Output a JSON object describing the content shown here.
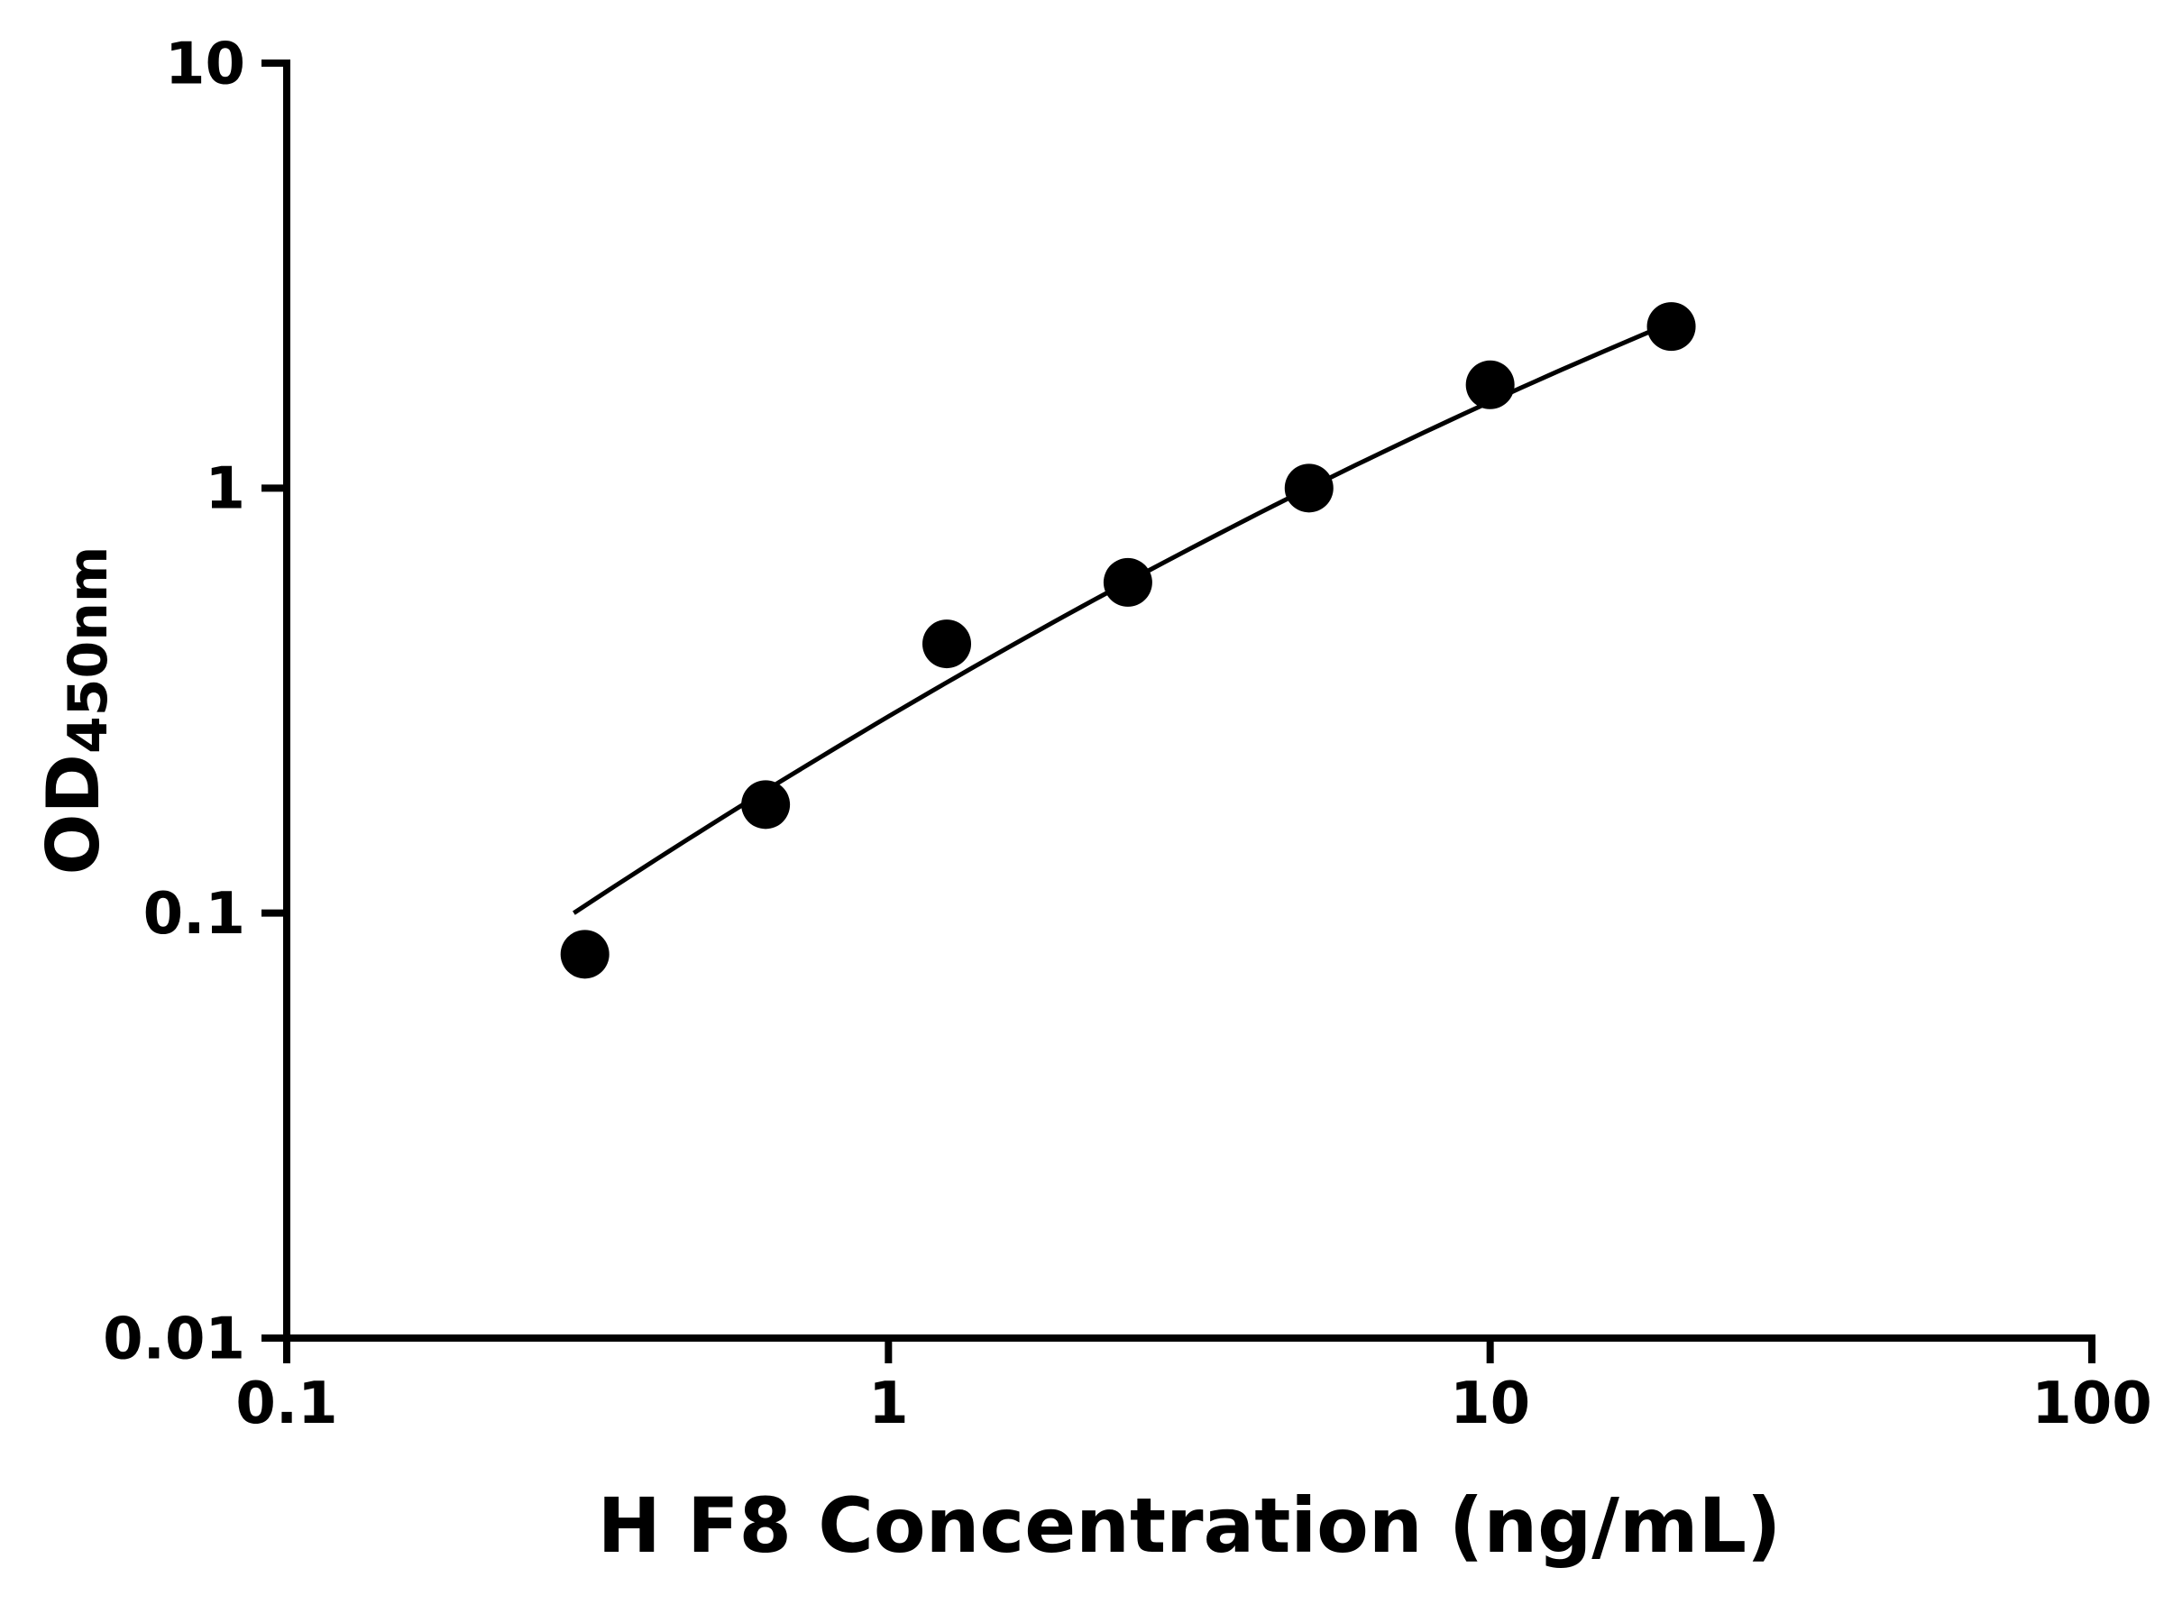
{
  "chart_data": {
    "type": "scatter",
    "title": "",
    "xlabel": "H F8 Concentration (ng/mL)",
    "ylabel": "OD450nm",
    "ylabel_main": "OD",
    "ylabel_sub": "450nm",
    "x_scale": "log",
    "y_scale": "log",
    "xlim": [
      0.1,
      100
    ],
    "ylim": [
      0.01,
      10
    ],
    "x_ticks": [
      0.1,
      1,
      10,
      100
    ],
    "x_tick_labels": [
      "0.1",
      "1",
      "10",
      "100"
    ],
    "y_ticks": [
      0.01,
      0.1,
      1,
      10
    ],
    "y_tick_labels": [
      "0.01",
      "0.1",
      "1",
      "10"
    ],
    "grid": false,
    "legend": null,
    "marker_color": "#000000",
    "line_color": "#000000",
    "axis_color": "#000000",
    "points": {
      "x": [
        0.313,
        0.625,
        1.25,
        2.5,
        5,
        10,
        20
      ],
      "y": [
        0.08,
        0.18,
        0.43,
        0.6,
        1.0,
        1.75,
        2.4
      ]
    },
    "fit_curve": {
      "model": "log10(y) = a*u^2 + b*u + c, where u = log10(x)",
      "a": -0.0945,
      "b": 0.835,
      "c": -0.5374,
      "x_start": 0.3,
      "x_end": 20
    }
  }
}
